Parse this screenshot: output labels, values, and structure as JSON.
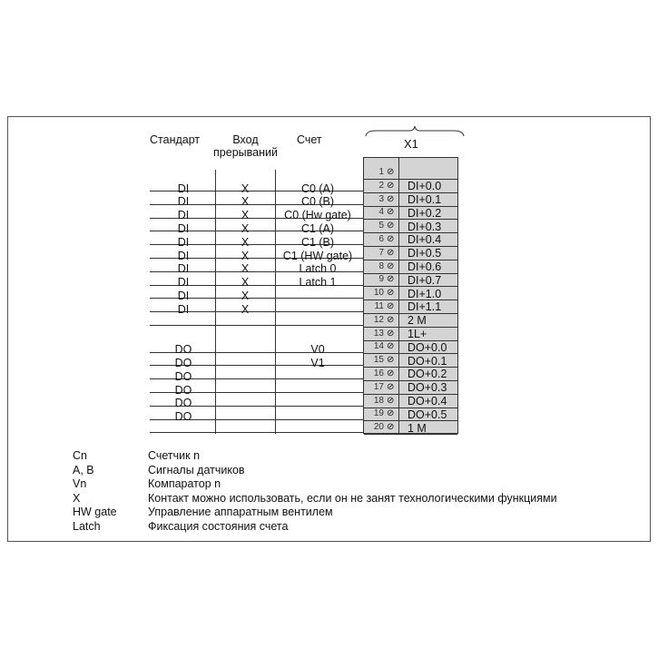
{
  "headers": {
    "standard": "Стандарт",
    "interrupt": "Вход прерываний",
    "count": "Счет",
    "connector": "X1"
  },
  "rows": [
    {
      "terminal": "1",
      "standard": "",
      "interrupt": "",
      "count": "",
      "signal": ""
    },
    {
      "terminal": "2",
      "standard": "DI",
      "interrupt": "X",
      "count": "C0 (A)",
      "signal": "DI+0.0"
    },
    {
      "terminal": "3",
      "standard": "DI",
      "interrupt": "X",
      "count": "C0 (B)",
      "signal": "DI+0.1"
    },
    {
      "terminal": "4",
      "standard": "DI",
      "interrupt": "X",
      "count": "C0 (Hw gate)",
      "signal": "DI+0.2"
    },
    {
      "terminal": "5",
      "standard": "DI",
      "interrupt": "X",
      "count": "C1 (A)",
      "signal": "DI+0.3"
    },
    {
      "terminal": "6",
      "standard": "DI",
      "interrupt": "X",
      "count": "C1 (B)",
      "signal": "DI+0.4"
    },
    {
      "terminal": "7",
      "standard": "DI",
      "interrupt": "X",
      "count": "C1 (HW gate)",
      "signal": "DI+0.5"
    },
    {
      "terminal": "8",
      "standard": "DI",
      "interrupt": "X",
      "count": "Latch 0",
      "signal": "DI+0.6"
    },
    {
      "terminal": "9",
      "standard": "DI",
      "interrupt": "X",
      "count": "Latch 1",
      "signal": "DI+0.7"
    },
    {
      "terminal": "10",
      "standard": "DI",
      "interrupt": "X",
      "count": "",
      "signal": "DI+1.0"
    },
    {
      "terminal": "11",
      "standard": "DI",
      "interrupt": "X",
      "count": "",
      "signal": "DI+1.1"
    },
    {
      "terminal": "12",
      "standard": "",
      "interrupt": "",
      "count": "",
      "signal": "2 M"
    },
    {
      "terminal": "13",
      "standard": "",
      "interrupt": "",
      "count": "",
      "signal": "1L+"
    },
    {
      "terminal": "14",
      "standard": "DO",
      "interrupt": "",
      "count": "V0",
      "signal": "DO+0.0"
    },
    {
      "terminal": "15",
      "standard": "DO",
      "interrupt": "",
      "count": "V1",
      "signal": "DO+0.1"
    },
    {
      "terminal": "16",
      "standard": "DO",
      "interrupt": "",
      "count": "",
      "signal": "DO+0.2"
    },
    {
      "terminal": "17",
      "standard": "DO",
      "interrupt": "",
      "count": "",
      "signal": "DO+0.3"
    },
    {
      "terminal": "18",
      "standard": "DO",
      "interrupt": "",
      "count": "",
      "signal": "DO+0.4"
    },
    {
      "terminal": "19",
      "standard": "DO",
      "interrupt": "",
      "count": "",
      "signal": "DO+0.5"
    },
    {
      "terminal": "20",
      "standard": "",
      "interrupt": "",
      "count": "",
      "signal": "1 M"
    }
  ],
  "legend": [
    {
      "key": "Cn",
      "text": "Счетчик n"
    },
    {
      "key": "A, B",
      "text": "Сигналы датчиков"
    },
    {
      "key": "Vn",
      "text": "Компаратор n"
    },
    {
      "key": "X",
      "text": "Контакт можно использовать, если он не занят технологическими функциями"
    },
    {
      "key": "HW gate",
      "text": "Управление аппаратным вентилем"
    },
    {
      "key": "Latch",
      "text": "Фиксация состояния счета"
    }
  ]
}
